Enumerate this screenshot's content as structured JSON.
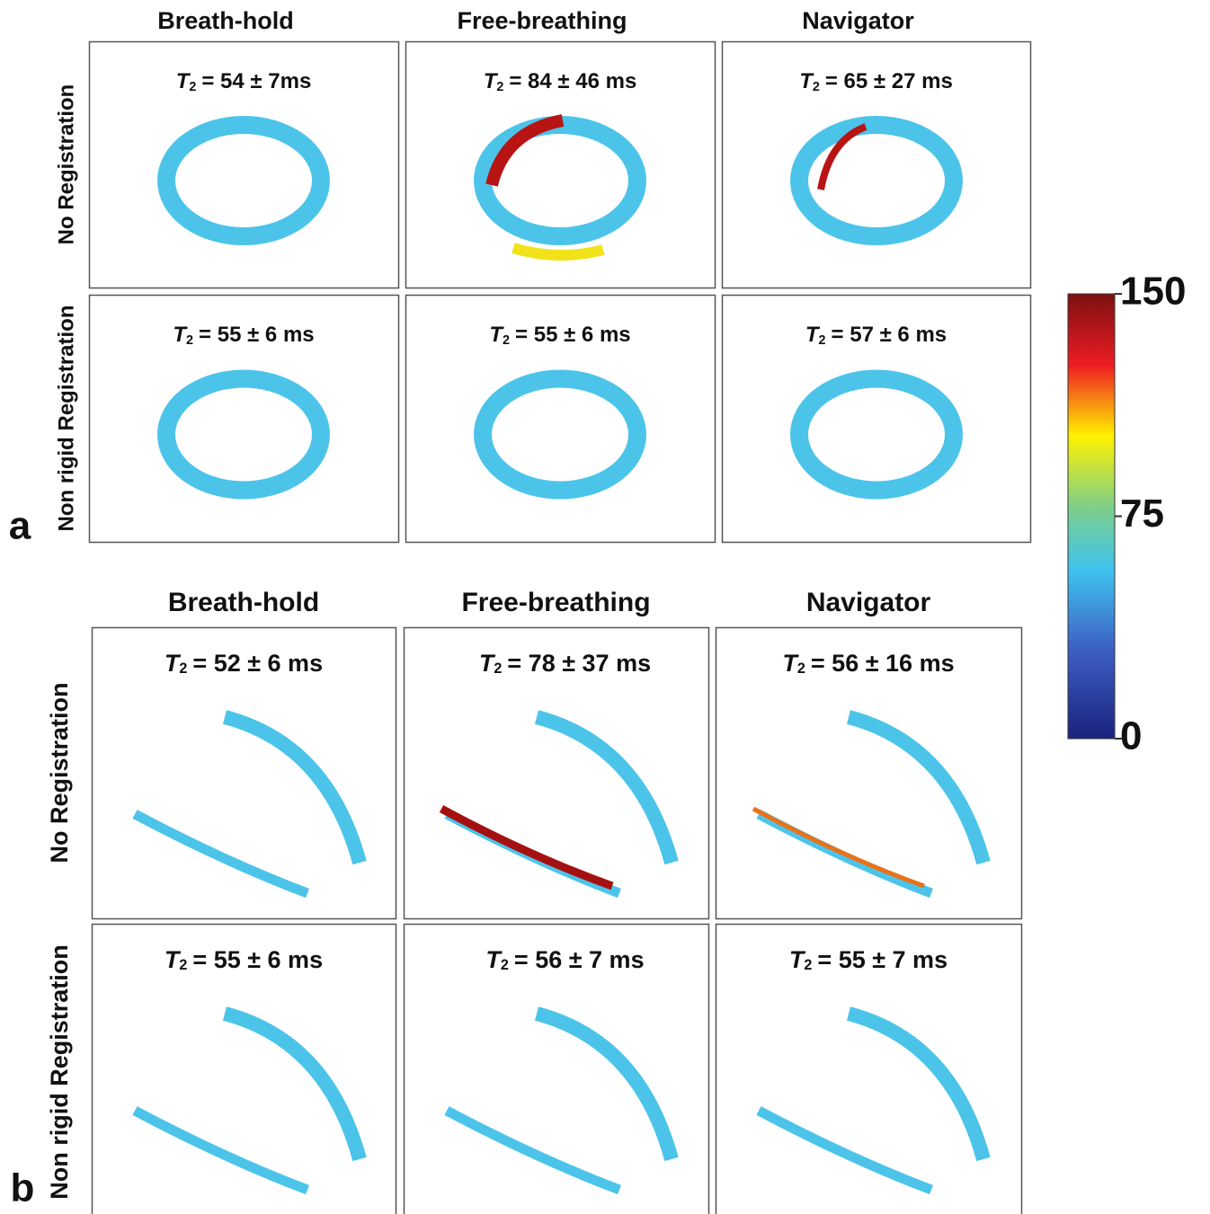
{
  "panels": [
    {
      "label": "a",
      "columns": [
        "Breath-hold",
        "Free-breathing",
        "Navigator"
      ],
      "rows": [
        {
          "label": "No Registration",
          "values": [
            "= 54 ± 7ms",
            "= 84 ± 46 ms",
            "= 65 ± 27 ms"
          ]
        },
        {
          "label": "Non rigid Registration",
          "values": [
            "= 55 ± 6 ms",
            "= 55 ± 6 ms",
            "= 57 ± 6 ms"
          ]
        }
      ]
    },
    {
      "label": "b",
      "columns": [
        "Breath-hold",
        "Free-breathing",
        "Navigator"
      ],
      "rows": [
        {
          "label": "No Registration",
          "values": [
            "= 52 ± 6 ms",
            "= 78 ± 37 ms",
            "= 56 ± 16 ms"
          ]
        },
        {
          "label": "Non rigid Registration",
          "values": [
            "= 55 ± 6 ms",
            "= 56 ± 7 ms",
            "= 55 ± 7 ms"
          ]
        }
      ]
    }
  ],
  "symbol": "T",
  "subscript": "2",
  "colorbar": {
    "ticks": [
      0,
      75,
      150
    ]
  }
}
